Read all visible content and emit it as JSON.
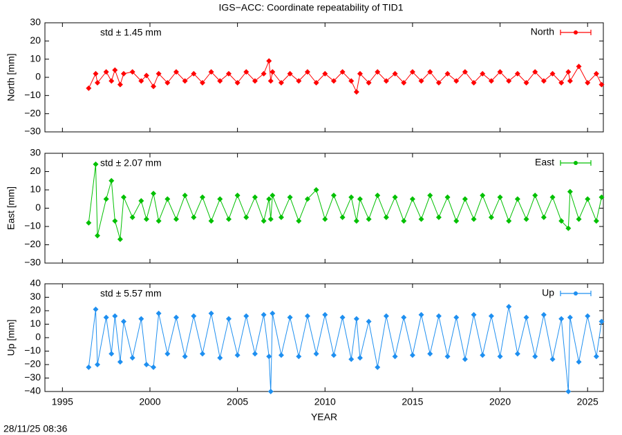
{
  "title": "IGS−ACC: Coordinate repeatability of TID1",
  "timestamp": "28/11/25 08:36",
  "chart_data": [
    {
      "type": "scatter",
      "y_label": "North [mm]",
      "annotation": "std ± 1.45 mm",
      "x": [
        1996.5,
        1996.9,
        1997.0,
        1997.5,
        1997.8,
        1998.0,
        1998.3,
        1998.5,
        1999.0,
        1999.5,
        1999.8,
        2000.2,
        2000.5,
        2001.0,
        2001.5,
        2002.0,
        2002.5,
        2003.0,
        2003.5,
        2004.0,
        2004.5,
        2005.0,
        2005.5,
        2006.0,
        2006.5,
        2006.8,
        2006.9,
        2007.0,
        2007.5,
        2008.0,
        2008.5,
        2009.0,
        2009.5,
        2010.0,
        2010.5,
        2011.0,
        2011.5,
        2011.8,
        2012.0,
        2012.5,
        2013.0,
        2013.5,
        2014.0,
        2014.5,
        2015.0,
        2015.5,
        2016.0,
        2016.5,
        2017.0,
        2017.5,
        2018.0,
        2018.5,
        2019.0,
        2019.5,
        2020.0,
        2020.5,
        2021.0,
        2021.5,
        2022.0,
        2022.5,
        2023.0,
        2023.5,
        2023.9,
        2024.0,
        2024.5,
        2025.0,
        2025.5,
        2025.8
      ],
      "series": [
        {
          "name": "North",
          "color": "#ff0000",
          "values": [
            -6,
            2,
            -3,
            3,
            -2,
            4,
            -4,
            2,
            3,
            -2,
            1,
            -5,
            2,
            -3,
            3,
            -2,
            2,
            -3,
            3,
            -2,
            2,
            -3,
            3,
            -2,
            2,
            9,
            -2,
            3,
            -3,
            2,
            -2,
            3,
            -3,
            2,
            -2,
            3,
            -2,
            -8,
            2,
            -3,
            3,
            -2,
            2,
            -3,
            3,
            -2,
            3,
            -3,
            2,
            -2,
            3,
            -3,
            2,
            -2,
            3,
            -2,
            2,
            -3,
            3,
            -2,
            2,
            -3,
            3,
            -2,
            6,
            -3,
            2,
            -4
          ]
        }
      ],
      "xlim": [
        1994,
        2025.9
      ],
      "xticks": [
        1995,
        2000,
        2005,
        2010,
        2015,
        2020,
        2025
      ],
      "ylim": [
        -30,
        30
      ],
      "yticks": [
        {
          "value": -30,
          "label": "−30"
        },
        {
          "value": -20,
          "label": "−20"
        },
        {
          "value": -10,
          "label": "−10"
        },
        0,
        10,
        20,
        30
      ],
      "legend": "upper right"
    },
    {
      "type": "scatter",
      "y_label": "East [mm]",
      "annotation": "std ± 2.07 mm",
      "x": [
        1996.5,
        1996.9,
        1997.0,
        1997.5,
        1997.8,
        1998.0,
        1998.3,
        1998.5,
        1999.0,
        1999.5,
        1999.8,
        2000.2,
        2000.5,
        2001.0,
        2001.5,
        2002.0,
        2002.5,
        2003.0,
        2003.5,
        2004.0,
        2004.5,
        2005.0,
        2005.5,
        2006.0,
        2006.5,
        2006.8,
        2006.9,
        2007.0,
        2007.5,
        2008.0,
        2008.5,
        2009.0,
        2009.5,
        2010.0,
        2010.5,
        2011.0,
        2011.5,
        2011.8,
        2012.0,
        2012.5,
        2013.0,
        2013.5,
        2014.0,
        2014.5,
        2015.0,
        2015.5,
        2016.0,
        2016.5,
        2017.0,
        2017.5,
        2018.0,
        2018.5,
        2019.0,
        2019.5,
        2020.0,
        2020.5,
        2021.0,
        2021.5,
        2022.0,
        2022.5,
        2023.0,
        2023.5,
        2023.9,
        2024.0,
        2024.5,
        2025.0,
        2025.5,
        2025.8
      ],
      "series": [
        {
          "name": "East",
          "color": "#00c000",
          "values": [
            -8,
            24,
            -15,
            5,
            15,
            -7,
            -17,
            6,
            -5,
            4,
            -6,
            8,
            -7,
            5,
            -6,
            7,
            -5,
            6,
            -7,
            5,
            -6,
            7,
            -5,
            6,
            -7,
            5,
            -6,
            7,
            -5,
            6,
            -7,
            5,
            10,
            -6,
            7,
            -5,
            6,
            -7,
            5,
            -6,
            7,
            -5,
            6,
            -7,
            5,
            -6,
            7,
            -5,
            6,
            -7,
            5,
            -6,
            7,
            -5,
            6,
            -7,
            5,
            -6,
            7,
            -5,
            6,
            -7,
            -11,
            9,
            -6,
            5,
            -7,
            6
          ]
        }
      ],
      "xlim": [
        1994,
        2025.9
      ],
      "xticks": [
        1995,
        2000,
        2005,
        2010,
        2015,
        2020,
        2025
      ],
      "ylim": [
        -30,
        30
      ],
      "yticks": [
        {
          "value": -30,
          "label": "−30"
        },
        {
          "value": -20,
          "label": "−20"
        },
        {
          "value": -10,
          "label": "−10"
        },
        0,
        10,
        20,
        30
      ],
      "legend": "upper right"
    },
    {
      "type": "scatter",
      "y_label": "Up [mm]",
      "x_label": "YEAR",
      "annotation": "std ± 5.57 mm",
      "x": [
        1996.5,
        1996.9,
        1997.0,
        1997.5,
        1997.8,
        1998.0,
        1998.3,
        1998.5,
        1999.0,
        1999.5,
        1999.8,
        2000.2,
        2000.5,
        2001.0,
        2001.5,
        2002.0,
        2002.5,
        2003.0,
        2003.5,
        2004.0,
        2004.5,
        2005.0,
        2005.5,
        2006.0,
        2006.5,
        2006.8,
        2006.9,
        2007.0,
        2007.5,
        2008.0,
        2008.5,
        2009.0,
        2009.5,
        2010.0,
        2010.5,
        2011.0,
        2011.5,
        2011.8,
        2012.0,
        2012.5,
        2013.0,
        2013.5,
        2014.0,
        2014.5,
        2015.0,
        2015.5,
        2016.0,
        2016.5,
        2017.0,
        2017.5,
        2018.0,
        2018.5,
        2019.0,
        2019.5,
        2020.0,
        2020.5,
        2021.0,
        2021.5,
        2022.0,
        2022.5,
        2023.0,
        2023.5,
        2023.9,
        2024.0,
        2024.5,
        2025.0,
        2025.5,
        2025.8
      ],
      "series": [
        {
          "name": "Up",
          "color": "#1e8ff0",
          "values": [
            -22,
            21,
            -20,
            15,
            -12,
            16,
            -18,
            12,
            -15,
            14,
            -20,
            -22,
            18,
            -12,
            15,
            -14,
            16,
            -12,
            18,
            -15,
            14,
            -13,
            16,
            -12,
            17,
            -14,
            -40,
            18,
            -13,
            15,
            -14,
            16,
            -12,
            17,
            -13,
            15,
            -16,
            14,
            -15,
            12,
            -22,
            16,
            -14,
            15,
            -13,
            17,
            -12,
            16,
            -14,
            15,
            -16,
            17,
            -13,
            16,
            -14,
            23,
            -12,
            15,
            -14,
            17,
            -16,
            14,
            -40,
            15,
            -18,
            16,
            -14,
            12
          ]
        }
      ],
      "xlim": [
        1994,
        2025.9
      ],
      "xticks": [
        1995,
        2000,
        2005,
        2010,
        2015,
        2020,
        2025
      ],
      "ylim": [
        -40,
        40
      ],
      "yticks": [
        {
          "value": -40,
          "label": "−40"
        },
        {
          "value": -30,
          "label": "−30"
        },
        {
          "value": -20,
          "label": "−20"
        },
        {
          "value": -10,
          "label": "−10"
        },
        0,
        10,
        20,
        30,
        40
      ],
      "legend": "upper right"
    }
  ]
}
